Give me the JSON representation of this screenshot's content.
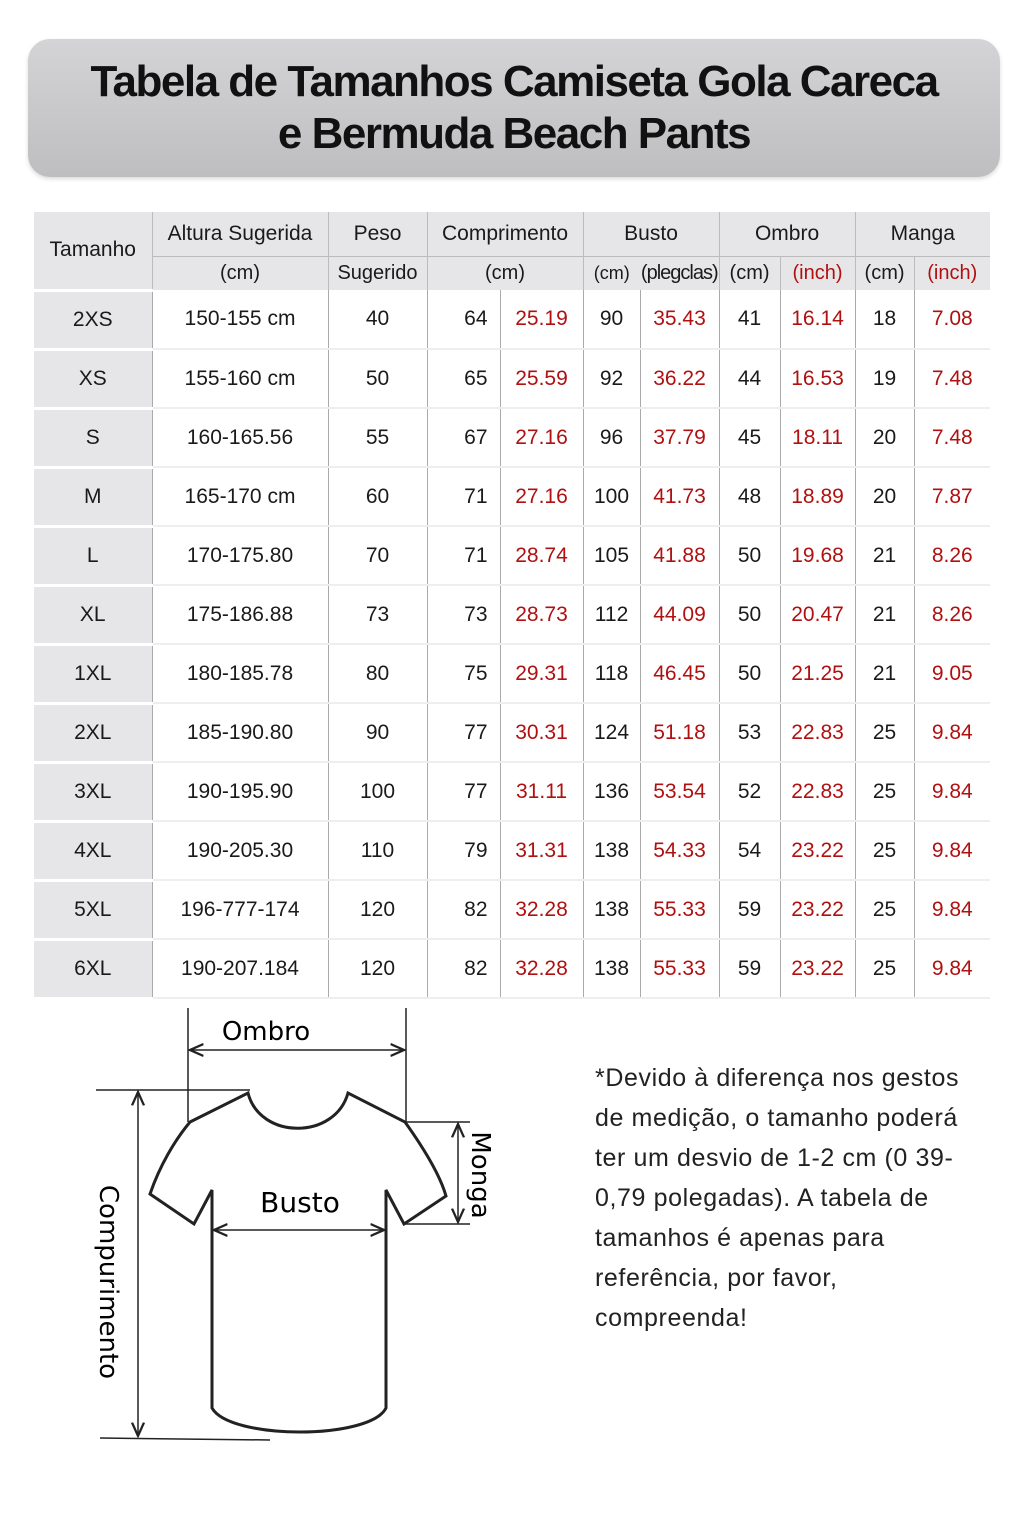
{
  "title": {
    "line1": "Tabela de Tamanhos Camiseta Gola Careca",
    "line2": "e Bermuda Beach Pants"
  },
  "table": {
    "headers": {
      "size": "Tamanho",
      "height": "Altura Sugerida",
      "height_unit": "(cm)",
      "weight": "Peso",
      "weight_unit": "Sugerido",
      "length": "Comprimento",
      "length_unit": "(cm)",
      "bust": "Busto",
      "bust_cm": "(cm)",
      "bust_in": "(plegclas)",
      "shoulder": "Ombro",
      "shoulder_cm": "(cm)",
      "shoulder_in": "(inch)",
      "sleeve": "Manga",
      "sleeve_cm": "(cm)",
      "sleeve_in": "(inch)"
    },
    "rows": [
      [
        "2XS",
        "150-155 cm",
        "40",
        "64",
        "25.19",
        "90",
        "35.43",
        "41",
        "16.14",
        "18",
        "7.08"
      ],
      [
        "XS",
        "155-160 cm",
        "50",
        "65",
        "25.59",
        "92",
        "36.22",
        "44",
        "16.53",
        "19",
        "7.48"
      ],
      [
        "S",
        "160-165.56",
        "55",
        "67",
        "27.16",
        "96",
        "37.79",
        "45",
        "18.11",
        "20",
        "7.48"
      ],
      [
        "M",
        "165-170 cm",
        "60",
        "71",
        "27.16",
        "100",
        "41.73",
        "48",
        "18.89",
        "20",
        "7.87"
      ],
      [
        "L",
        "170-175.80",
        "70",
        "71",
        "28.74",
        "105",
        "41.88",
        "50",
        "19.68",
        "21",
        "8.26"
      ],
      [
        "XL",
        "175-186.88",
        "73",
        "73",
        "28.73",
        "112",
        "44.09",
        "50",
        "20.47",
        "21",
        "8.26"
      ],
      [
        "1XL",
        "180-185.78",
        "80",
        "75",
        "29.31",
        "118",
        "46.45",
        "50",
        "21.25",
        "21",
        "9.05"
      ],
      [
        "2XL",
        "185-190.80",
        "90",
        "77",
        "30.31",
        "124",
        "51.18",
        "53",
        "22.83",
        "25",
        "9.84"
      ],
      [
        "3XL",
        "190-195.90",
        "100",
        "77",
        "31.11",
        "136",
        "53.54",
        "52",
        "22.83",
        "25",
        "9.84"
      ],
      [
        "4XL",
        "190-205.30",
        "110",
        "79",
        "31.31",
        "138",
        "54.33",
        "54",
        "23.22",
        "25",
        "9.84"
      ],
      [
        "5XL",
        "196-777-174",
        "120",
        "82",
        "32.28",
        "138",
        "55.33",
        "59",
        "23.22",
        "25",
        "9.84"
      ],
      [
        "6XL",
        "190-207.184",
        "120",
        "82",
        "32.28",
        "138",
        "55.33",
        "59",
        "23.22",
        "25",
        "9.84"
      ]
    ]
  },
  "diagram": {
    "shoulder": "Ombro",
    "bust": "Busto",
    "sleeve": "Monga",
    "length": "Compurimento"
  },
  "note": "*Devido à diferença nos gestos de medição, o tamanho poderá ter um desvio de 1-2 cm (0 39-0,79 polegadas). A tabela de tamanhos é apenas para referência, por favor, compreenda!",
  "colors": {
    "inch_values": "#b01010",
    "header_bg": "#e6e6e8"
  }
}
